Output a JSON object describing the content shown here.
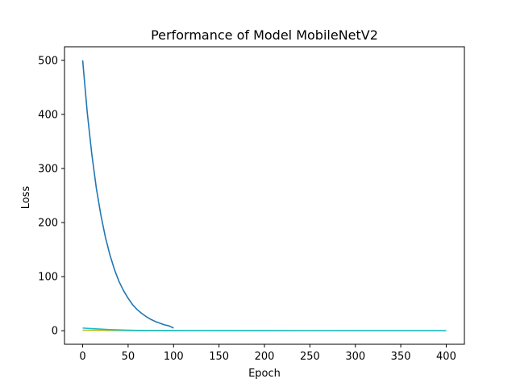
{
  "chart_data": {
    "type": "line",
    "title": "Performance of Model MobileNetV2",
    "xlabel": "Epoch",
    "ylabel": "Loss",
    "xlim": [
      -20,
      420
    ],
    "ylim": [
      -25,
      525
    ],
    "xticks": [
      0,
      50,
      100,
      150,
      200,
      250,
      300,
      350,
      400
    ],
    "yticks": [
      0,
      100,
      200,
      300,
      400,
      500
    ],
    "grid": false,
    "legend": "none",
    "series": [
      {
        "color": "#1f77b4",
        "x": [
          0,
          5,
          10,
          15,
          20,
          25,
          30,
          35,
          40,
          45,
          50,
          55,
          60,
          65,
          70,
          75,
          80,
          85,
          90,
          95,
          100
        ],
        "y": [
          500,
          404,
          327,
          264,
          214,
          173,
          140,
          113,
          91,
          74,
          60,
          48,
          39,
          32,
          26,
          21,
          17,
          14,
          11,
          9,
          5
        ]
      },
      {
        "color": "#bcbd22",
        "x": [
          0,
          10,
          20,
          30,
          40,
          50,
          100,
          200,
          300,
          400
        ],
        "y": [
          1.0,
          0.8,
          0.6,
          0.5,
          0.4,
          0.3,
          0.2,
          0.1,
          0.1,
          0.1
        ]
      },
      {
        "color": "#17becf",
        "x": [
          0,
          10,
          20,
          30,
          40,
          50,
          60,
          100,
          200,
          300,
          400
        ],
        "y": [
          5,
          4,
          3,
          2.2,
          1.5,
          1.0,
          0.6,
          0.3,
          0.2,
          0.1,
          0.1
        ]
      }
    ]
  }
}
